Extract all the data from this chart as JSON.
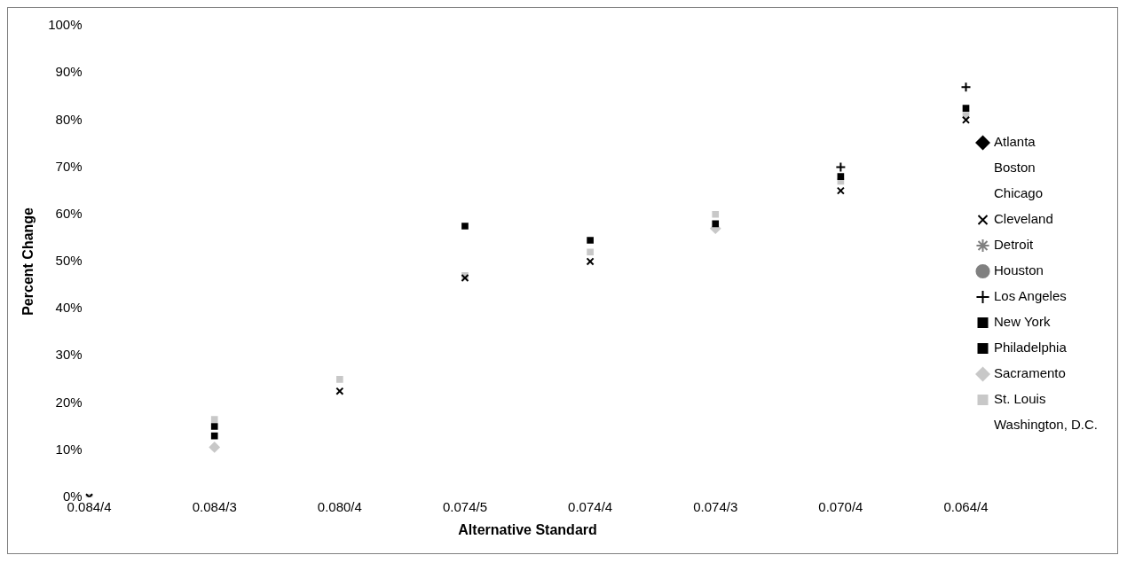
{
  "chart_data": {
    "type": "scatter",
    "xlabel": "Alternative Standard",
    "ylabel": "Percent Change",
    "categories": [
      "0.084/4",
      "0.084/3",
      "0.080/4",
      "0.074/5",
      "0.074/4",
      "0.074/3",
      "0.070/4",
      "0.064/4"
    ],
    "ylim": [
      0,
      100
    ],
    "yticks": [
      {
        "value": 0,
        "label": "0%"
      },
      {
        "value": 10,
        "label": "10%"
      },
      {
        "value": 20,
        "label": "20%"
      },
      {
        "value": 30,
        "label": "30%"
      },
      {
        "value": 40,
        "label": "40%"
      },
      {
        "value": 50,
        "label": "50%"
      },
      {
        "value": 60,
        "label": "60%"
      },
      {
        "value": 70,
        "label": "70%"
      },
      {
        "value": 80,
        "label": "80%"
      },
      {
        "value": 90,
        "label": "90%"
      },
      {
        "value": 100,
        "label": "100%"
      }
    ],
    "grid": false,
    "legend": "right",
    "series": [
      {
        "name": "Atlanta",
        "color": "#000000",
        "marker": "diamond",
        "values": [
          null,
          null,
          null,
          null,
          null,
          null,
          null,
          null
        ]
      },
      {
        "name": "Boston",
        "marker": "none",
        "values": [
          null,
          null,
          null,
          null,
          null,
          null,
          null,
          null
        ]
      },
      {
        "name": "Chicago",
        "marker": "none",
        "values": [
          null,
          null,
          null,
          null,
          null,
          null,
          null,
          null
        ]
      },
      {
        "name": "Cleveland",
        "color": "#000000",
        "marker": "x",
        "values": [
          0,
          null,
          22.5,
          46.5,
          50,
          null,
          65,
          80
        ]
      },
      {
        "name": "Detroit",
        "color": "#808080",
        "marker": "star",
        "values": [
          null,
          null,
          null,
          null,
          null,
          null,
          null,
          null
        ]
      },
      {
        "name": "Houston",
        "color": "#808080",
        "marker": "circle",
        "values": [
          null,
          null,
          null,
          null,
          null,
          null,
          null,
          null
        ]
      },
      {
        "name": "Los Angeles",
        "color": "#000000",
        "marker": "cross",
        "values": [
          null,
          null,
          null,
          null,
          null,
          null,
          70,
          87
        ]
      },
      {
        "name": "New York",
        "color": "#000000",
        "marker": "square",
        "values": [
          null,
          15,
          null,
          57.5,
          null,
          58,
          null,
          null
        ]
      },
      {
        "name": "Philadelphia",
        "color": "#000000",
        "marker": "square",
        "values": [
          null,
          13,
          null,
          null,
          54.5,
          null,
          68,
          82.5
        ]
      },
      {
        "name": "Sacramento",
        "color": "#c8c8c8",
        "marker": "diamond",
        "values": [
          null,
          10.6,
          null,
          null,
          null,
          57,
          null,
          null
        ]
      },
      {
        "name": "St. Louis",
        "color": "#c8c8c8",
        "marker": "square",
        "values": [
          0,
          16.5,
          25,
          47,
          52,
          60,
          67,
          81
        ]
      },
      {
        "name": "Washington, D.C.",
        "marker": "none",
        "values": [
          null,
          null,
          null,
          null,
          null,
          null,
          null,
          null
        ]
      }
    ]
  }
}
